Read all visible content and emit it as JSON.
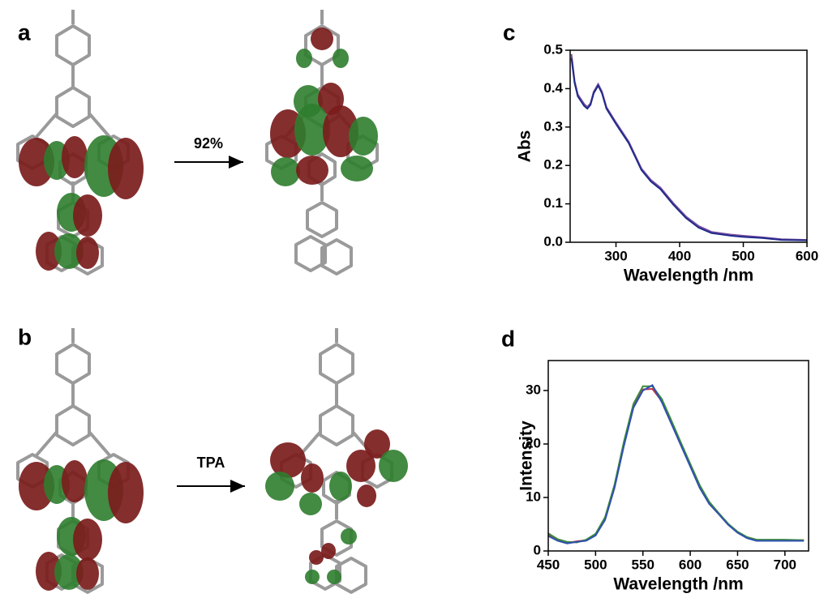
{
  "panels": [
    {
      "label": "a",
      "arrow_label": "92%"
    },
    {
      "label": "b",
      "arrow_label": "TPA"
    }
  ],
  "chart_data": [
    {
      "type": "line",
      "panel_label": "c",
      "x_label": "Wavelength /nm",
      "y_label": "Abs",
      "xlim": [
        228,
        600
      ],
      "ylim": [
        0,
        0.5
      ],
      "xticks": [
        300,
        400,
        500,
        600
      ],
      "yticks": [
        {
          "value": 0,
          "label": "0.0"
        },
        0.1,
        0.2,
        0.3,
        0.4,
        0.5
      ],
      "series": [
        {
          "color": "#7a4fa0",
          "x": [
            230,
            235,
            240,
            250,
            255,
            260,
            265,
            272,
            278,
            285,
            300,
            320,
            340,
            355,
            370,
            390,
            410,
            430,
            450,
            480,
            500,
            530,
            560,
            600
          ],
          "values": [
            0.49,
            0.42,
            0.385,
            0.36,
            0.352,
            0.362,
            0.392,
            0.412,
            0.392,
            0.352,
            0.312,
            0.262,
            0.192,
            0.162,
            0.142,
            0.102,
            0.067,
            0.042,
            0.027,
            0.02,
            0.017,
            0.013,
            0.008,
            0.006
          ]
        },
        {
          "color": "#1f2a8a",
          "x": [
            230,
            235,
            240,
            250,
            255,
            260,
            265,
            272,
            278,
            285,
            300,
            320,
            340,
            355,
            370,
            390,
            410,
            430,
            450,
            480,
            500,
            530,
            560,
            600
          ],
          "values": [
            0.48,
            0.415,
            0.38,
            0.355,
            0.348,
            0.358,
            0.388,
            0.408,
            0.388,
            0.348,
            0.308,
            0.258,
            0.188,
            0.158,
            0.138,
            0.098,
            0.063,
            0.038,
            0.024,
            0.017,
            0.014,
            0.011,
            0.006,
            0.005
          ]
        }
      ]
    },
    {
      "type": "line",
      "panel_label": "d",
      "x_label": "Wavelength /nm",
      "y_label": "Intensity",
      "xlim": [
        450,
        725
      ],
      "ylim": [
        0,
        35.6
      ],
      "xticks": [
        450,
        500,
        550,
        600,
        650,
        700
      ],
      "yticks": [
        0,
        10,
        20,
        30
      ],
      "series": [
        {
          "color": "#c0304a",
          "x": [
            450,
            460,
            470,
            480,
            490,
            500,
            510,
            520,
            530,
            540,
            550,
            560,
            570,
            580,
            590,
            600,
            610,
            620,
            630,
            640,
            650,
            660,
            670,
            680,
            700,
            720
          ],
          "values": [
            3,
            2,
            1.5,
            1.8,
            2,
            3,
            6,
            12,
            20,
            27,
            30.2,
            30.3,
            28,
            24,
            20,
            16,
            12,
            9,
            7,
            5,
            3.5,
            2.5,
            2,
            2,
            2,
            2
          ]
        },
        {
          "color": "#3a8a3a",
          "x": [
            450,
            460,
            470,
            480,
            490,
            500,
            510,
            520,
            530,
            540,
            550,
            560,
            570,
            580,
            590,
            600,
            610,
            620,
            630,
            640,
            650,
            660,
            670,
            680,
            700,
            720
          ],
          "values": [
            3.3,
            2.2,
            1.7,
            1.6,
            2.1,
            3.2,
            6.3,
            12.4,
            20.5,
            27.5,
            30.8,
            30.8,
            28.4,
            24.4,
            20.3,
            16.3,
            12.3,
            9.2,
            7.1,
            5.1,
            3.6,
            2.6,
            2.1,
            2.1,
            2.1,
            2
          ]
        },
        {
          "color": "#3050b0",
          "x": [
            450,
            460,
            470,
            480,
            490,
            500,
            510,
            520,
            530,
            540,
            550,
            560,
            570,
            580,
            590,
            600,
            610,
            620,
            630,
            640,
            650,
            660,
            670,
            680,
            700,
            720
          ],
          "values": [
            2.8,
            1.9,
            1.4,
            1.7,
            1.9,
            2.9,
            5.8,
            11.8,
            19.7,
            26.8,
            30,
            31,
            27.8,
            23.8,
            19.8,
            15.8,
            11.8,
            8.8,
            6.9,
            4.9,
            3.4,
            2.4,
            1.9,
            1.9,
            1.9,
            1.9
          ]
        }
      ]
    }
  ]
}
